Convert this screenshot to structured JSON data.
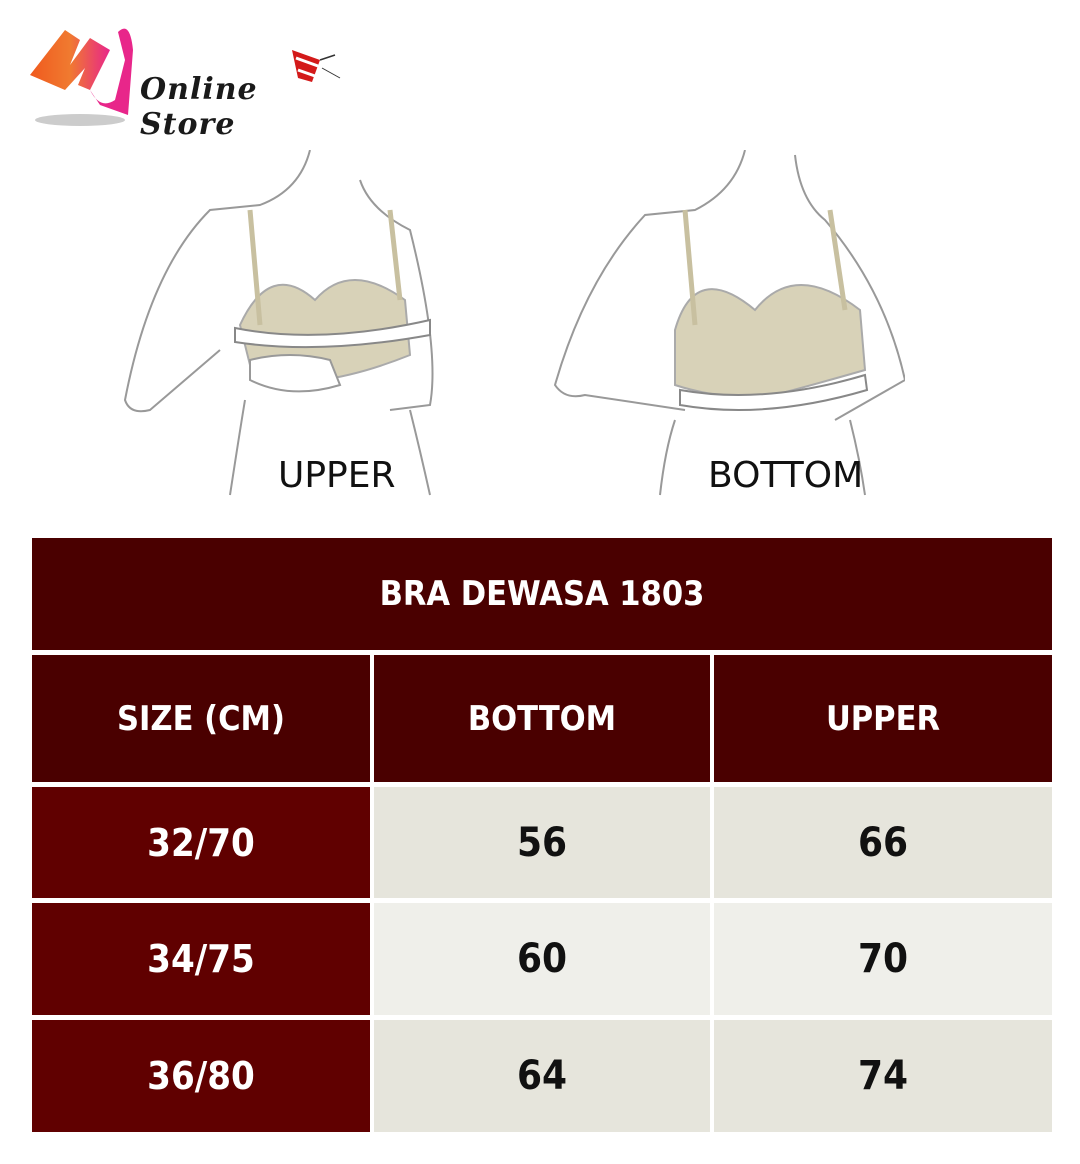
{
  "brand": {
    "logo_letters": "MU",
    "name": "Online Store"
  },
  "figures": [
    {
      "label": "UPPER"
    },
    {
      "label": "BOTTOM"
    }
  ],
  "table": {
    "title": "BRA DEWASA 1803",
    "headers": [
      "SIZE (CM)",
      "BOTTOM",
      "UPPER"
    ],
    "rows": [
      {
        "size": "32/70",
        "bottom": "56",
        "upper": "66"
      },
      {
        "size": "34/75",
        "bottom": "60",
        "upper": "70"
      },
      {
        "size": "36/80",
        "bottom": "64",
        "upper": "74"
      }
    ]
  },
  "colors": {
    "header": "#4a0000",
    "size_cell": "#600000",
    "row_light": "#e6e5dc",
    "row_lighter": "#efefea"
  }
}
